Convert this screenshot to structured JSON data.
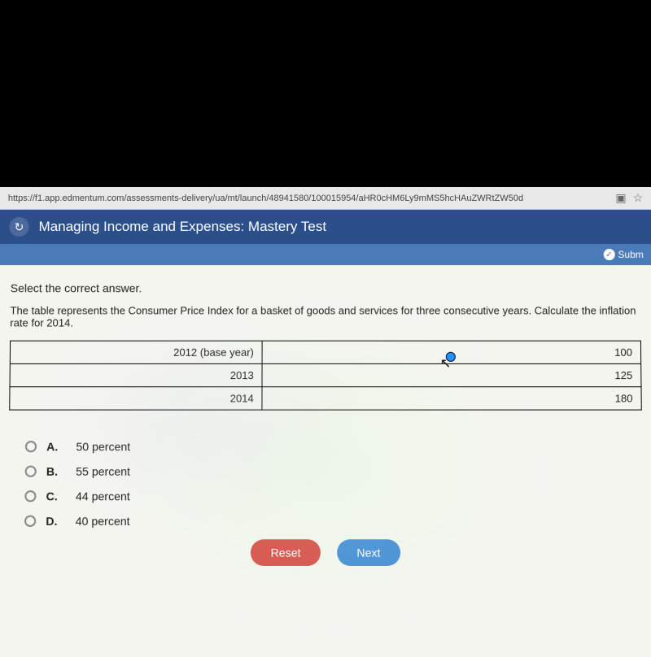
{
  "url": "https://f1.app.edmentum.com/assessments-delivery/ua/mt/launch/48941580/100015954/aHR0cHM6Ly9mMS5hcHAuZWRtZW50d",
  "header": {
    "title": "Managing Income and Expenses: Mastery Test",
    "submit": "Subm"
  },
  "instruction": "Select the correct answer.",
  "question": "The table represents the Consumer Price Index for a basket of goods and services for three consecutive years. Calculate the inflation rate for 2014.",
  "table": {
    "rows": [
      {
        "year": "2012 (base year)",
        "value": "100"
      },
      {
        "year": "2013",
        "value": "125"
      },
      {
        "year": "2014",
        "value": "180"
      }
    ]
  },
  "options": [
    {
      "letter": "A.",
      "text": "50 percent"
    },
    {
      "letter": "B.",
      "text": "55 percent"
    },
    {
      "letter": "C.",
      "text": "44 percent"
    },
    {
      "letter": "D.",
      "text": "40 percent"
    }
  ],
  "buttons": {
    "reset": "Reset",
    "next": "Next"
  }
}
